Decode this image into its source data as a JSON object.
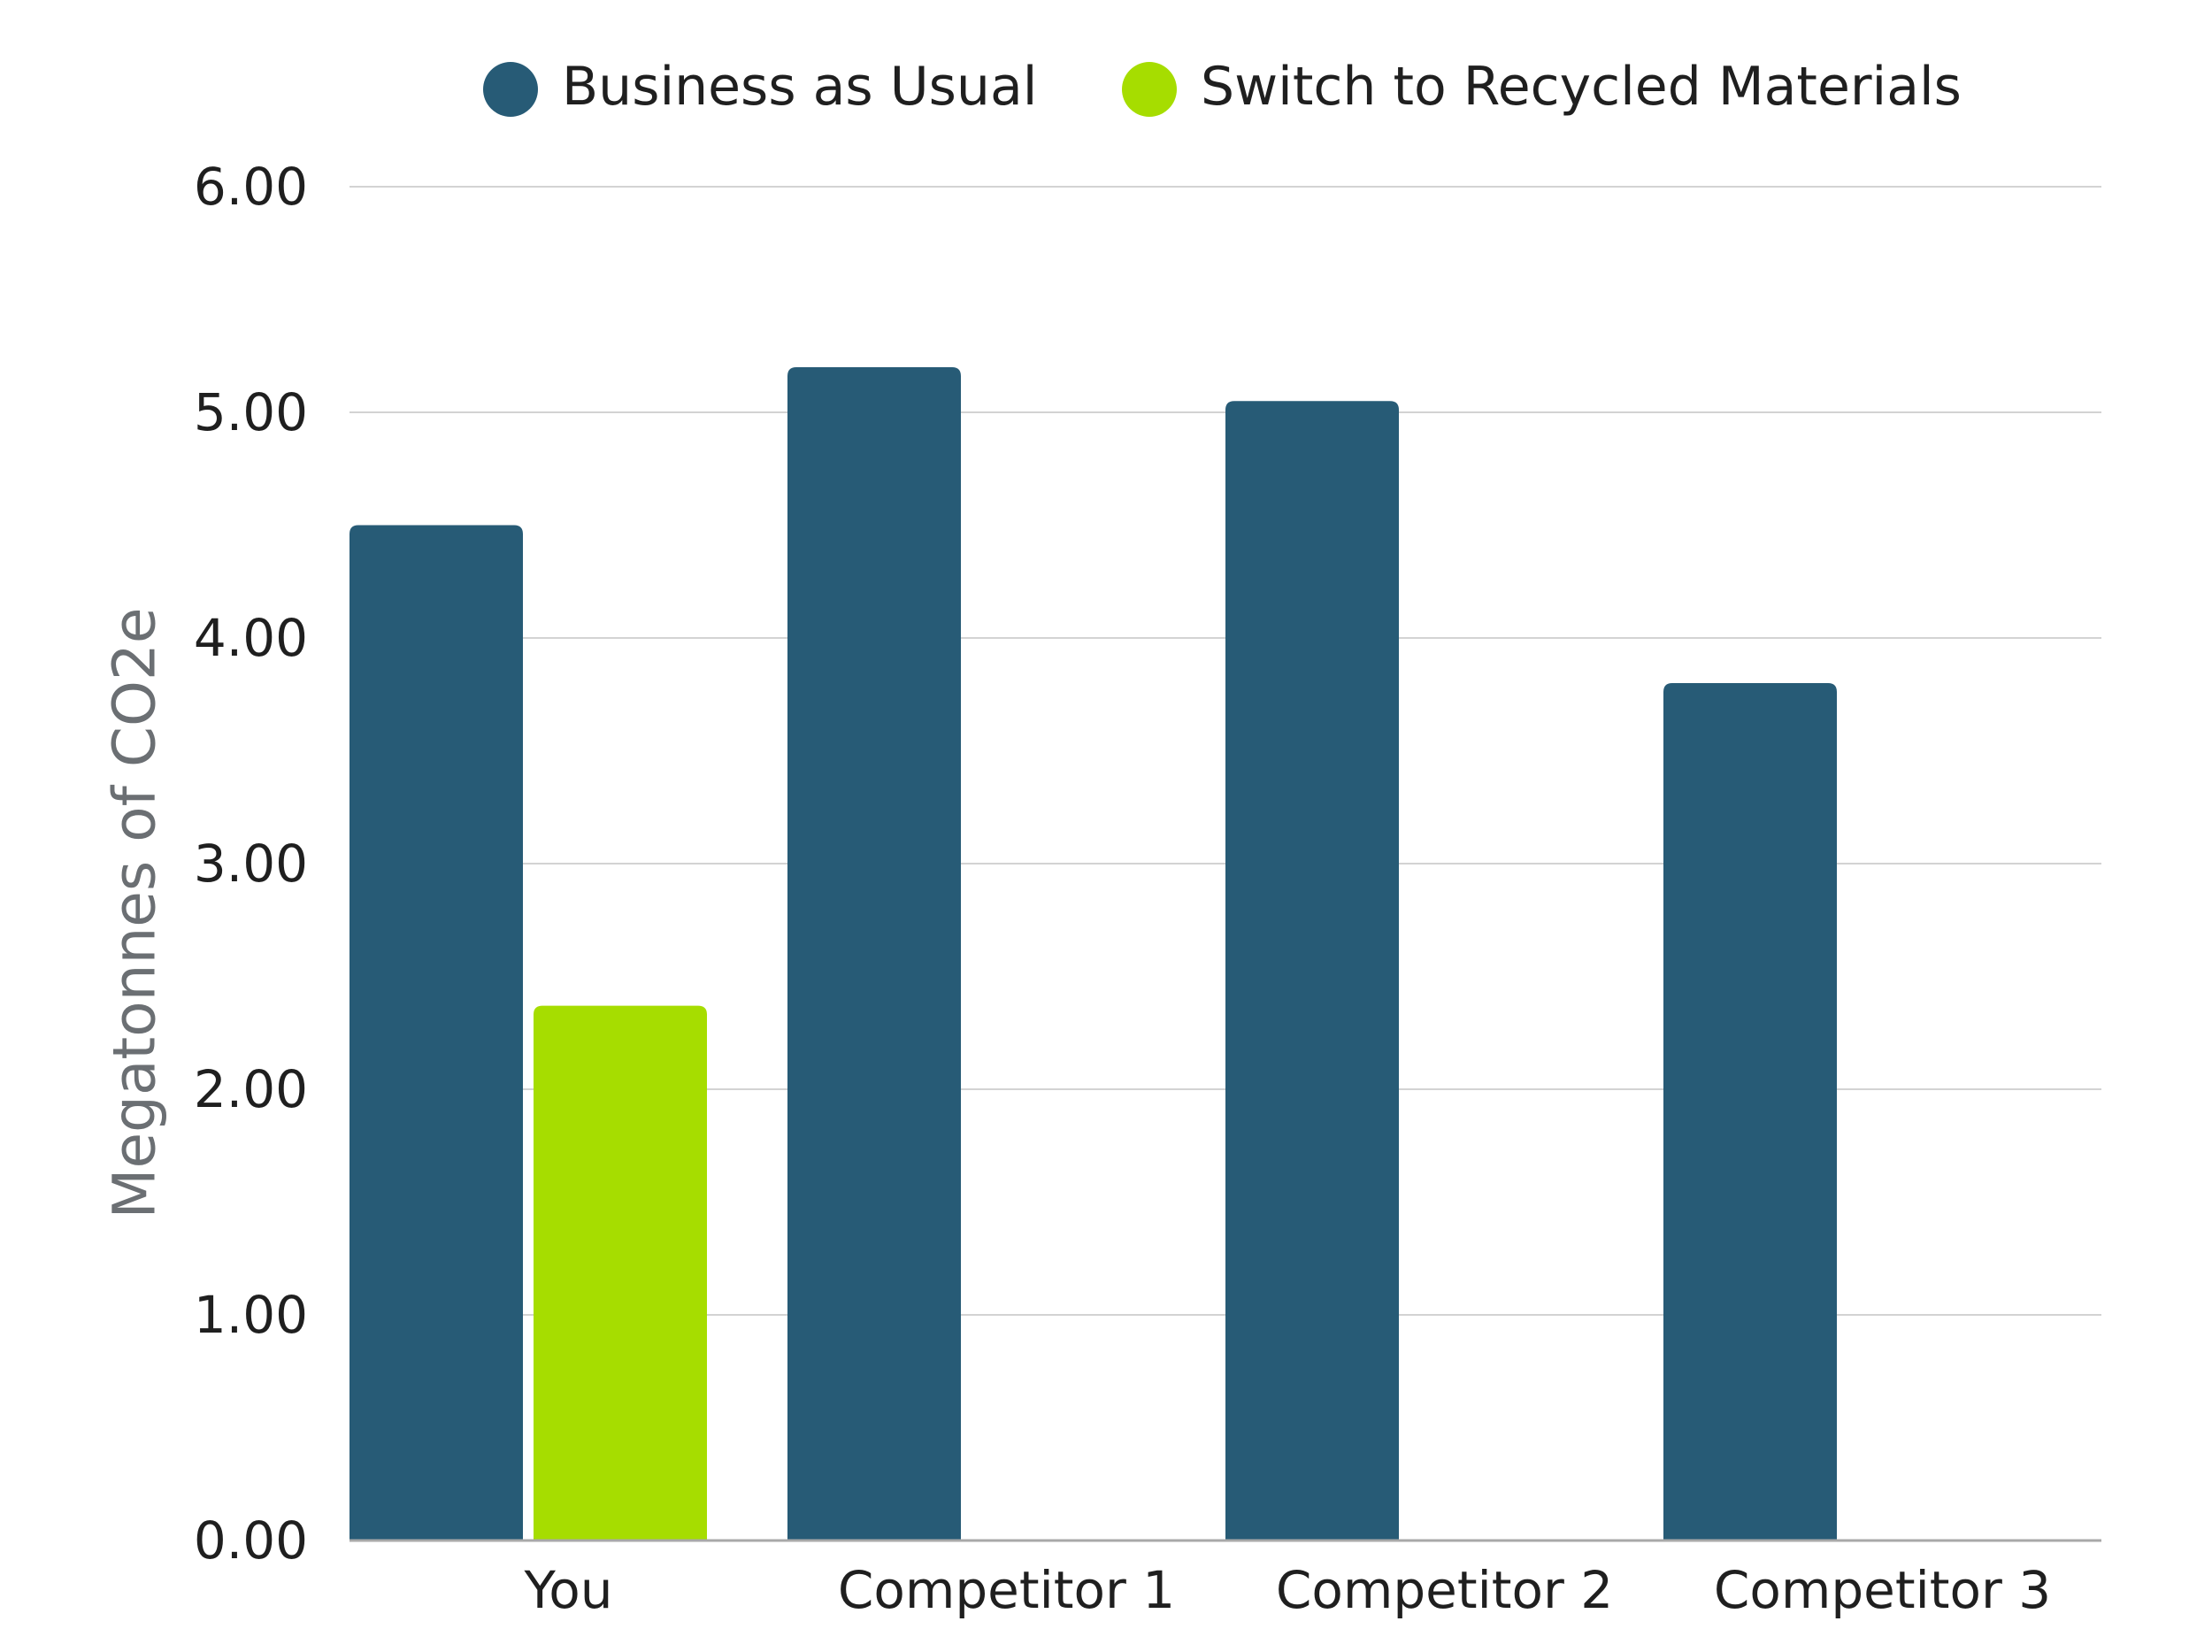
{
  "chart_data": {
    "type": "bar",
    "title": "",
    "xlabel": "",
    "ylabel": "Megatonnes of CO2e",
    "ylim": [
      0,
      6
    ],
    "yticks": [
      "0.00",
      "1.00",
      "2.00",
      "3.00",
      "4.00",
      "5.00",
      "6.00"
    ],
    "grid": true,
    "legend_position": "top",
    "categories": [
      "You",
      "Competitor 1",
      "Competitor 2",
      "Competitor 3"
    ],
    "series": [
      {
        "name": "Business as Usual",
        "color": "#275b76",
        "values": [
          4.5,
          5.2,
          5.05,
          3.8
        ]
      },
      {
        "name": "Switch to Recycled Materials",
        "color": "#a6dd00",
        "values": [
          2.37,
          null,
          null,
          null
        ]
      }
    ]
  }
}
